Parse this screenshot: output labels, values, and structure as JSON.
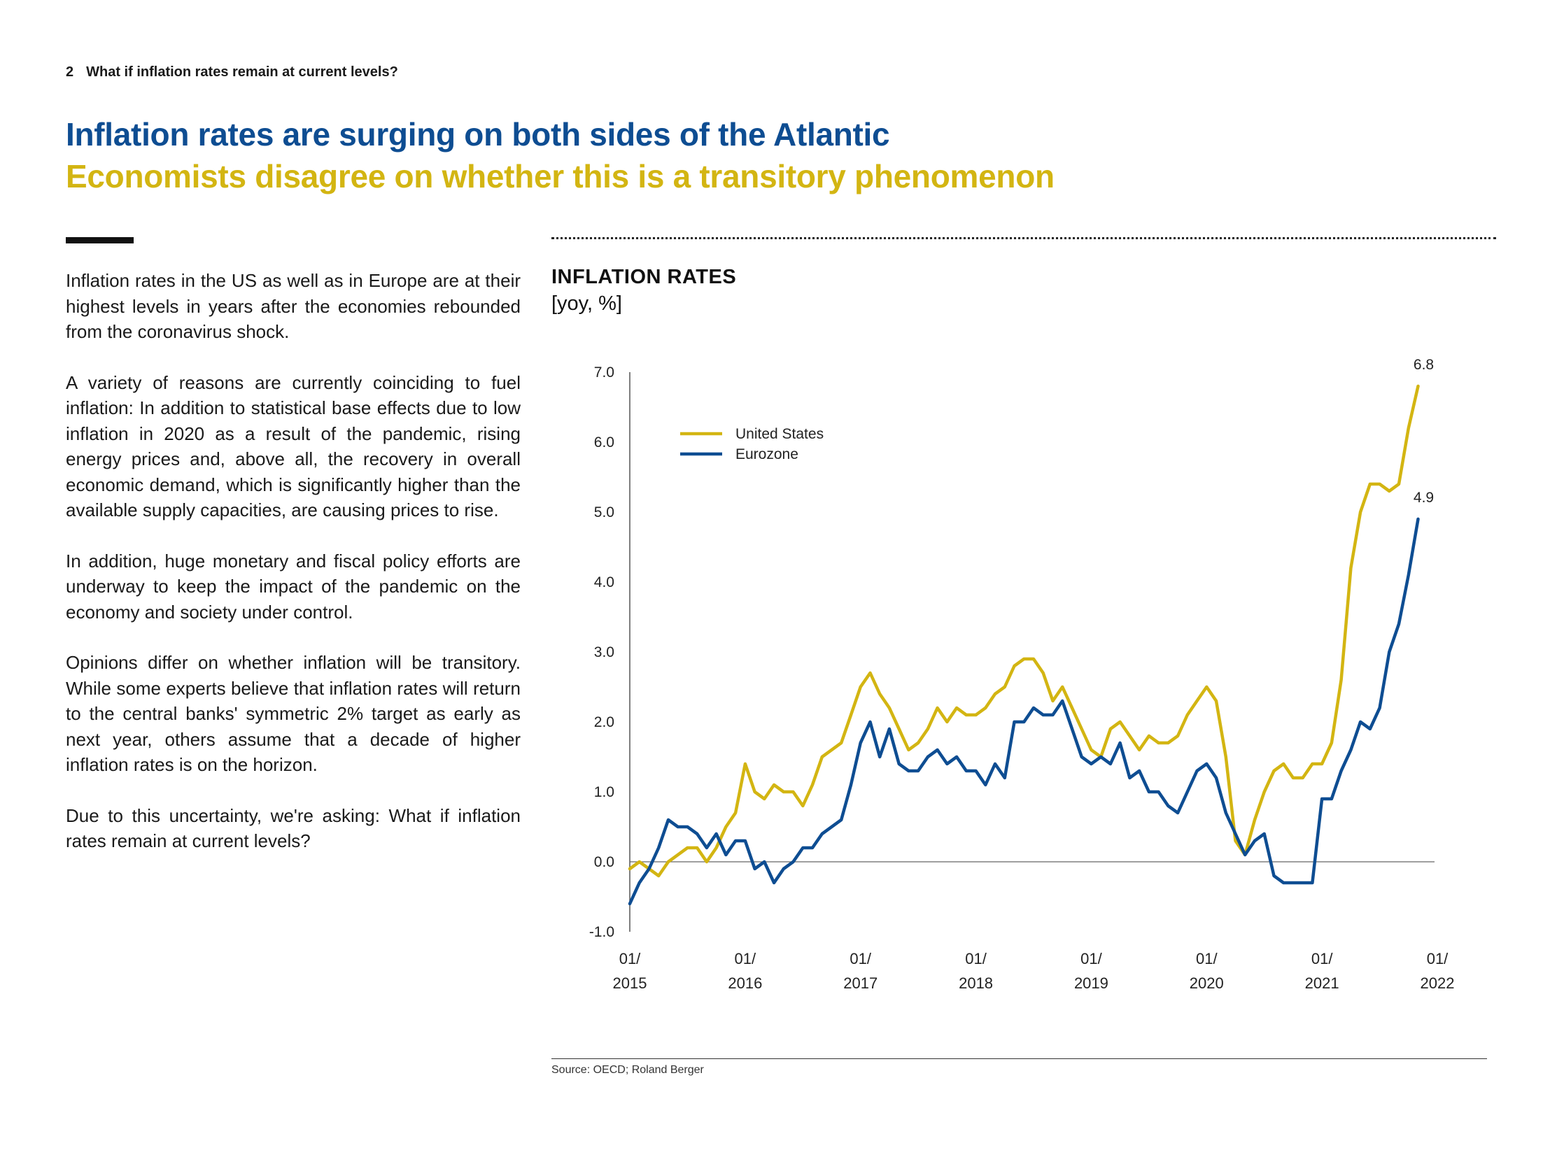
{
  "page": {
    "number": "2",
    "header": "What if inflation rates remain at current levels?"
  },
  "title": {
    "line1": "Inflation rates are surging on both sides of the Atlantic",
    "line2": "Economists disagree on whether this is a transitory phenomenon"
  },
  "body": {
    "paragraphs": [
      "Inflation rates in the US as well as in Europe are at their highest levels in years after the economies rebounded from the coronavirus shock.",
      "A variety of reasons are currently coinciding to fuel inflation: In addition to statistical base effects due to low inflation in 2020 as a result of the pandemic, rising energy prices and, above all, the recovery in overall economic demand, which is significantly higher than the available supply capacities, are causing prices to rise.",
      "In addition, huge monetary and fiscal policy efforts are underway to keep the impact of the pandemic on the economy and society under control.",
      "Opinions differ on whether inflation will be transitory. While some experts believe that inflation rates will return to the central banks' symmetric 2% target as early as next year, others assume that a decade of higher inflation rates is on the horizon.",
      "Due to this uncertainty, we're asking: What if inflation rates remain at current levels?"
    ]
  },
  "colors": {
    "title_blue": "#0e4d92",
    "title_gold": "#d3b512",
    "us_line": "#d3b512",
    "eurozone_line": "#0e4d92"
  },
  "chart_data": {
    "type": "line",
    "title": "INFLATION RATES",
    "unit_label": "[yoy, %]",
    "xlabel": "",
    "ylabel": "",
    "ylim": [
      -1.0,
      7.0
    ],
    "yticks": [
      -1.0,
      0.0,
      1.0,
      2.0,
      3.0,
      4.0,
      5.0,
      6.0,
      7.0
    ],
    "x_start": "2015-01",
    "x_end": "2021-11",
    "xticks": [
      {
        "month_index": 0,
        "line1": "01/",
        "line2": "2015"
      },
      {
        "month_index": 12,
        "line1": "01/",
        "line2": "2016"
      },
      {
        "month_index": 24,
        "line1": "01/",
        "line2": "2017"
      },
      {
        "month_index": 36,
        "line1": "01/",
        "line2": "2018"
      },
      {
        "month_index": 48,
        "line1": "01/",
        "line2": "2019"
      },
      {
        "month_index": 60,
        "line1": "01/",
        "line2": "2020"
      },
      {
        "month_index": 72,
        "line1": "01/",
        "line2": "2021"
      },
      {
        "month_index": 84,
        "line1": "01/",
        "line2": "2022"
      }
    ],
    "legend_position": "top-left",
    "series": [
      {
        "name": "United States",
        "color": "#d3b512",
        "end_label": "6.8",
        "values": [
          -0.1,
          0.0,
          -0.1,
          -0.2,
          0.0,
          0.1,
          0.2,
          0.2,
          0.0,
          0.2,
          0.5,
          0.7,
          1.4,
          1.0,
          0.9,
          1.1,
          1.0,
          1.0,
          0.8,
          1.1,
          1.5,
          1.6,
          1.7,
          2.1,
          2.5,
          2.7,
          2.4,
          2.2,
          1.9,
          1.6,
          1.7,
          1.9,
          2.2,
          2.0,
          2.2,
          2.1,
          2.1,
          2.2,
          2.4,
          2.5,
          2.8,
          2.9,
          2.9,
          2.7,
          2.3,
          2.5,
          2.2,
          1.9,
          1.6,
          1.5,
          1.9,
          2.0,
          1.8,
          1.6,
          1.8,
          1.7,
          1.7,
          1.8,
          2.1,
          2.3,
          2.5,
          2.3,
          1.5,
          0.3,
          0.1,
          0.6,
          1.0,
          1.3,
          1.4,
          1.2,
          1.2,
          1.4,
          1.4,
          1.7,
          2.6,
          4.2,
          5.0,
          5.4,
          5.4,
          5.3,
          5.4,
          6.2,
          6.8
        ]
      },
      {
        "name": "Eurozone",
        "color": "#0e4d92",
        "end_label": "4.9",
        "values": [
          -0.6,
          -0.3,
          -0.1,
          0.2,
          0.6,
          0.5,
          0.5,
          0.4,
          0.2,
          0.4,
          0.1,
          0.3,
          0.3,
          -0.1,
          0.0,
          -0.3,
          -0.1,
          0.0,
          0.2,
          0.2,
          0.4,
          0.5,
          0.6,
          1.1,
          1.7,
          2.0,
          1.5,
          1.9,
          1.4,
          1.3,
          1.3,
          1.5,
          1.6,
          1.4,
          1.5,
          1.3,
          1.3,
          1.1,
          1.4,
          1.2,
          2.0,
          2.0,
          2.2,
          2.1,
          2.1,
          2.3,
          1.9,
          1.5,
          1.4,
          1.5,
          1.4,
          1.7,
          1.2,
          1.3,
          1.0,
          1.0,
          0.8,
          0.7,
          1.0,
          1.3,
          1.4,
          1.2,
          0.7,
          0.4,
          0.1,
          0.3,
          0.4,
          -0.2,
          -0.3,
          -0.3,
          -0.3,
          -0.3,
          0.9,
          0.9,
          1.3,
          1.6,
          2.0,
          1.9,
          2.2,
          3.0,
          3.4,
          4.1,
          4.9
        ]
      }
    ]
  },
  "source": "Source: OECD; Roland Berger"
}
